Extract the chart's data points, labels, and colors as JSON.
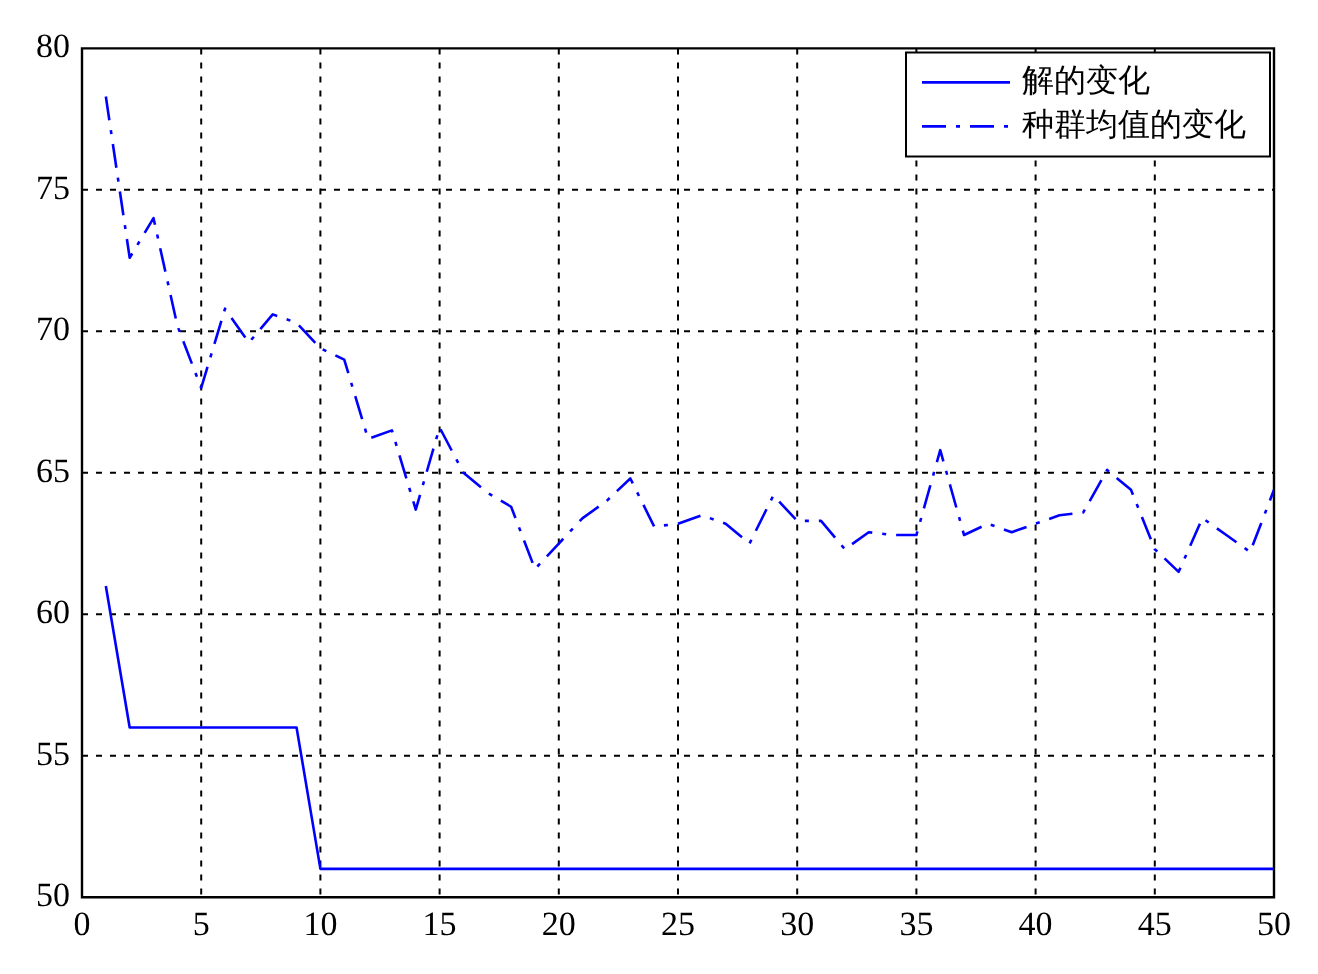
{
  "chart_data": {
    "type": "line",
    "x": [
      1,
      2,
      3,
      4,
      5,
      6,
      7,
      8,
      9,
      10,
      11,
      12,
      13,
      14,
      15,
      16,
      17,
      18,
      19,
      20,
      21,
      22,
      23,
      24,
      25,
      26,
      27,
      28,
      29,
      30,
      31,
      32,
      33,
      34,
      35,
      36,
      37,
      38,
      39,
      40,
      41,
      42,
      43,
      44,
      45,
      46,
      47,
      48,
      49,
      50
    ],
    "series": [
      {
        "name": "解的变化",
        "color": "#0000ff",
        "line_style": "solid",
        "x": [
          1,
          2,
          9,
          10,
          50
        ],
        "values": [
          61,
          56,
          56,
          51,
          51
        ]
      },
      {
        "name": "种群均值的变化",
        "color": "#0000ff",
        "line_style": "dashed",
        "values": [
          78.3,
          72.6,
          74.0,
          70.2,
          68.0,
          70.8,
          69.6,
          70.6,
          70.3,
          69.4,
          69.0,
          66.2,
          66.5,
          63.7,
          66.6,
          65.0,
          64.3,
          63.8,
          61.6,
          62.5,
          63.4,
          64.0,
          64.8,
          63.1,
          63.2,
          63.5,
          63.2,
          62.5,
          64.2,
          63.3,
          63.3,
          62.3,
          62.9,
          62.8,
          62.8,
          65.8,
          62.8,
          63.2,
          62.9,
          63.2,
          63.5,
          63.6,
          65.1,
          64.4,
          62.3,
          61.5,
          63.4,
          62.8,
          62.2,
          64.4
        ]
      }
    ],
    "xlim": [
      0,
      50
    ],
    "xticks": [
      0,
      5,
      10,
      15,
      20,
      25,
      30,
      35,
      40,
      45,
      50
    ],
    "ylim": [
      50,
      80
    ],
    "yticks": [
      50,
      55,
      60,
      65,
      70,
      75,
      80
    ],
    "grid": true,
    "legend": "top right",
    "marker": "none"
  }
}
